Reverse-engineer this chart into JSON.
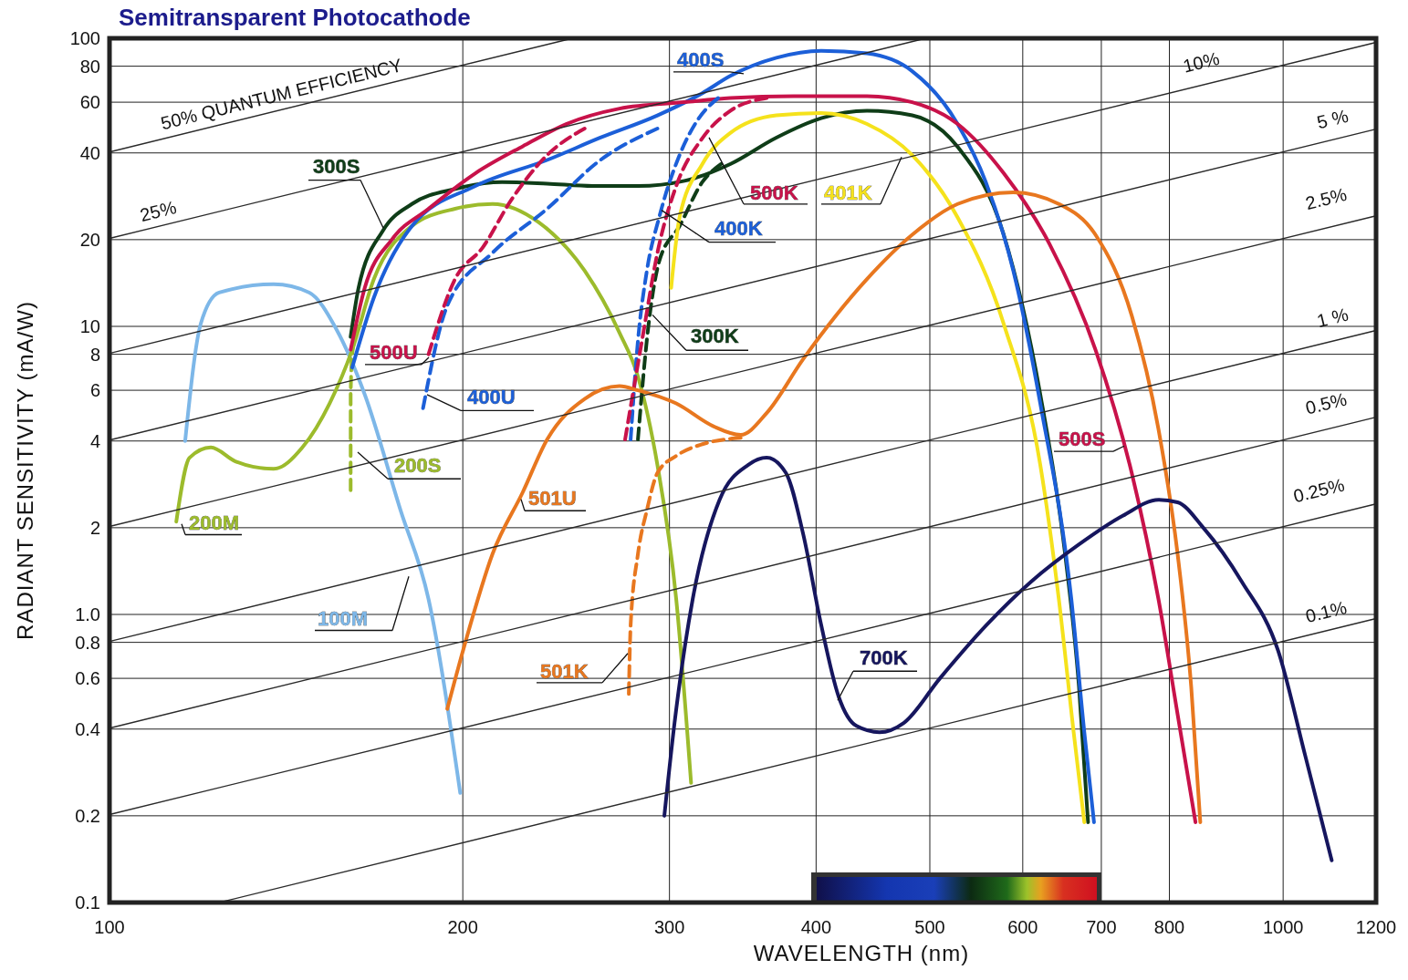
{
  "chart_data": {
    "type": "line",
    "title": "Semitransparent Photocathode",
    "xlabel": "WAVELENGTH (nm)",
    "ylabel": "RADIANT SENSITIVITY (mA/W)",
    "log": "xy",
    "grid": true,
    "marker": "none",
    "xlim": [
      100,
      1200
    ],
    "xticks": [
      100,
      200,
      300,
      400,
      500,
      600,
      700,
      800,
      1000,
      1200
    ],
    "ylim": [
      0.1,
      100
    ],
    "yticks": [
      0.1,
      0.2,
      0.4,
      0.6,
      0.8,
      {
        "value": 1,
        "label": "1.0"
      },
      2,
      4,
      6,
      8,
      10,
      20,
      40,
      60,
      80,
      100
    ],
    "series": [
      {
        "name": "100M",
        "color": "#7db7e8",
        "line_style": "solid",
        "x": [
          116,
          119.6,
          124,
          138,
          148,
          156,
          165,
          177,
          187,
          199
        ],
        "values": [
          4.0,
          10.2,
          13.1,
          14,
          13.1,
          9.8,
          5.8,
          2.3,
          1.13,
          0.24
        ]
      },
      {
        "name": "200M",
        "color": "#9cbb2c",
        "line_style": "solid",
        "x": [
          114,
          117,
          122,
          128,
          138,
          146,
          154,
          161,
          168,
          181,
          197,
          212,
          232,
          254,
          272,
          282,
          293,
          304,
          313
        ],
        "values": [
          2.1,
          3.5,
          3.8,
          3.4,
          3.2,
          3.8,
          5.4,
          8.3,
          14.6,
          22.3,
          25.6,
          26.6,
          23,
          15.6,
          9.5,
          6.7,
          3.3,
          1.13,
          0.26
        ]
      },
      {
        "name": "200S",
        "color": "#9cbb2c",
        "line_style": "dashed",
        "x": [
          160.5,
          160.5,
          161,
          163
        ],
        "values": [
          2.7,
          5.8,
          8,
          10
        ]
      },
      {
        "name": "300S",
        "color": "#0f3d18",
        "line_style": "solid",
        "x": [
          160.5,
          163,
          171,
          181,
          197,
          216,
          236,
          258,
          282,
          309,
          338,
          370,
          404,
          442,
          483,
          528,
          578,
          621,
          652,
          670,
          682
        ],
        "values": [
          9.2,
          13.6,
          21.5,
          26.6,
          30,
          31.7,
          31.3,
          30.7,
          30.7,
          32,
          36.6,
          45.2,
          52.8,
          56,
          54,
          42,
          20.8,
          5.8,
          1.62,
          0.56,
          0.19
        ]
      },
      {
        "name": "400S",
        "color": "#1c5fd8",
        "line_style": "solid",
        "x": [
          161,
          168,
          181,
          205,
          236,
          262,
          293,
          320,
          338,
          370,
          404,
          442,
          483,
          528,
          558,
          589,
          621,
          660,
          677,
          690
        ],
        "values": [
          7.2,
          12.6,
          22.3,
          30.7,
          37.8,
          45.2,
          54,
          64.5,
          74,
          85.6,
          90.5,
          88.6,
          76.9,
          50.4,
          31.7,
          15.6,
          5.4,
          1.13,
          0.39,
          0.19
        ]
      },
      {
        "name": "400U",
        "color": "#1c5fd8",
        "line_style": "dashed",
        "x": [
          185,
          194,
          212,
          236,
          262,
          293
        ],
        "values": [
          5.2,
          11.8,
          18,
          25.6,
          37.8,
          48.6
        ]
      },
      {
        "name": "500S",
        "color": "#c8124a",
        "line_style": "solid",
        "x": [
          160.5,
          165,
          174,
          187,
          205,
          225,
          245,
          272,
          309,
          338,
          383,
          442,
          483,
          528,
          578,
          632,
          692,
          743,
          783,
          813,
          842
        ],
        "values": [
          8.3,
          13.6,
          20,
          25.6,
          34,
          42.2,
          50.4,
          57,
          60,
          62,
          63,
          63,
          60,
          50.4,
          34,
          19.4,
          8.3,
          3.1,
          1.13,
          0.45,
          0.19
        ]
      },
      {
        "name": "500U",
        "color": "#c8124a",
        "line_style": "dashed",
        "x": [
          187,
          197,
          208,
          220,
          236,
          254
        ],
        "values": [
          8,
          14.6,
          18.8,
          27.5,
          39.3,
          48.6
        ]
      },
      {
        "name": "300K",
        "color": "#0f3d18",
        "line_style": "dashed",
        "x": [
          282,
          288,
          294,
          306,
          320,
          332
        ],
        "values": [
          4.05,
          10.2,
          16.8,
          22.3,
          31.7,
          36.6
        ]
      },
      {
        "name": "400K",
        "color": "#1c5fd8",
        "line_style": "dashed",
        "x": [
          278,
          282,
          287,
          294,
          306,
          317,
          330
        ],
        "values": [
          4.05,
          8.9,
          15.6,
          23.9,
          39.3,
          52,
          62
        ]
      },
      {
        "name": "500K",
        "color": "#c8124a",
        "line_style": "dashed",
        "x": [
          275,
          285,
          293,
          304,
          320,
          338,
          363
        ],
        "values": [
          4.05,
          9.5,
          18,
          30.7,
          45,
          56,
          62
        ]
      },
      {
        "name": "401K",
        "color": "#f5e21c",
        "line_style": "solid",
        "x": [
          301,
          306,
          320,
          338,
          370,
          404,
          442,
          483,
          528,
          578,
          621,
          644,
          663,
          677
        ],
        "values": [
          13.6,
          23.9,
          36.6,
          46.9,
          54,
          55,
          50.4,
          39.3,
          23.9,
          10.2,
          3.3,
          1.13,
          0.39,
          0.19
        ]
      },
      {
        "name": "501U",
        "color": "#e8771f",
        "line_style": "solid",
        "x": [
          194,
          201,
          212,
          225,
          236,
          254,
          272,
          282,
          304,
          327,
          345,
          363,
          390,
          442,
          483,
          528,
          589,
          644,
          692,
          743,
          783,
          813,
          835,
          850
        ],
        "values": [
          0.47,
          0.8,
          1.62,
          2.66,
          4.05,
          5.6,
          6.2,
          6,
          5.4,
          4.5,
          4.2,
          5,
          7.7,
          14.6,
          20.8,
          26.6,
          29.2,
          26.6,
          20.8,
          10.9,
          4.4,
          1.62,
          0.56,
          0.19
        ]
      },
      {
        "name": "501K",
        "color": "#e8771f",
        "line_style": "dashed",
        "x": [
          277,
          278,
          282,
          287,
          293,
          304,
          320,
          345
        ],
        "values": [
          0.53,
          0.92,
          1.62,
          2.3,
          3.1,
          3.55,
          3.9,
          4.1
        ]
      },
      {
        "name": "700K",
        "color": "#16165e",
        "line_style": "solid",
        "x": [
          297,
          303,
          314,
          331,
          350,
          363,
          377,
          390,
          404,
          418,
          433,
          453,
          475,
          510,
          559,
          610,
          670,
          730,
          783,
          813,
          855,
          922,
          990,
          1045,
          1100
        ],
        "values": [
          0.2,
          0.42,
          1.13,
          2.5,
          3.3,
          3.5,
          3.1,
          1.9,
          0.92,
          0.52,
          0.41,
          0.39,
          0.42,
          0.6,
          0.92,
          1.3,
          1.75,
          2.2,
          2.5,
          2.45,
          2,
          1.3,
          0.75,
          0.32,
          0.14
        ]
      },
      {
        "name": "50% QUANTUM EFFICIENCY",
        "color": "#2a2a2a",
        "line_style": "solid",
        "x": [
          100,
          248
        ],
        "values": [
          40.3,
          100
        ]
      },
      {
        "name": "25%",
        "color": "#2a2a2a",
        "line_style": "solid",
        "x": [
          100,
          496
        ],
        "values": [
          20.2,
          100
        ]
      },
      {
        "name": "10%",
        "color": "#2a2a2a",
        "line_style": "solid",
        "x": [
          100,
          1200
        ],
        "values": [
          8.06,
          96.8
        ]
      },
      {
        "name": "5 %",
        "color": "#2a2a2a",
        "line_style": "solid",
        "x": [
          100,
          1200
        ],
        "values": [
          4.03,
          48.4
        ]
      },
      {
        "name": "2.5%",
        "color": "#2a2a2a",
        "line_style": "solid",
        "x": [
          100,
          1200
        ],
        "values": [
          2.02,
          24.2
        ]
      },
      {
        "name": "1 %",
        "color": "#2a2a2a",
        "line_style": "solid",
        "x": [
          100,
          1200
        ],
        "values": [
          0.806,
          9.68
        ]
      },
      {
        "name": "0.5%",
        "color": "#2a2a2a",
        "line_style": "solid",
        "x": [
          100,
          1200
        ],
        "values": [
          0.403,
          4.84
        ]
      },
      {
        "name": "0.25%",
        "color": "#2a2a2a",
        "line_style": "solid",
        "x": [
          100,
          1200
        ],
        "values": [
          0.202,
          2.42
        ]
      },
      {
        "name": "0.1%",
        "color": "#2a2a2a",
        "line_style": "solid",
        "x": [
          124,
          1200
        ],
        "values": [
          0.1,
          0.968
        ]
      }
    ]
  }
}
